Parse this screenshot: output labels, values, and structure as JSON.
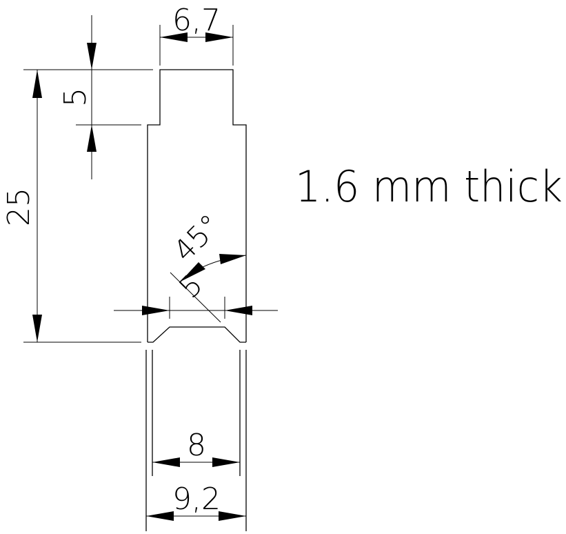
{
  "drawing": {
    "note": "1.6 mm thick",
    "dimensions": {
      "top_width": "6,7",
      "tab_height": "5",
      "overall_height": "25",
      "angle": "45°",
      "chamfer": "5",
      "inner_width": "8",
      "outer_width": "9,2"
    }
  }
}
